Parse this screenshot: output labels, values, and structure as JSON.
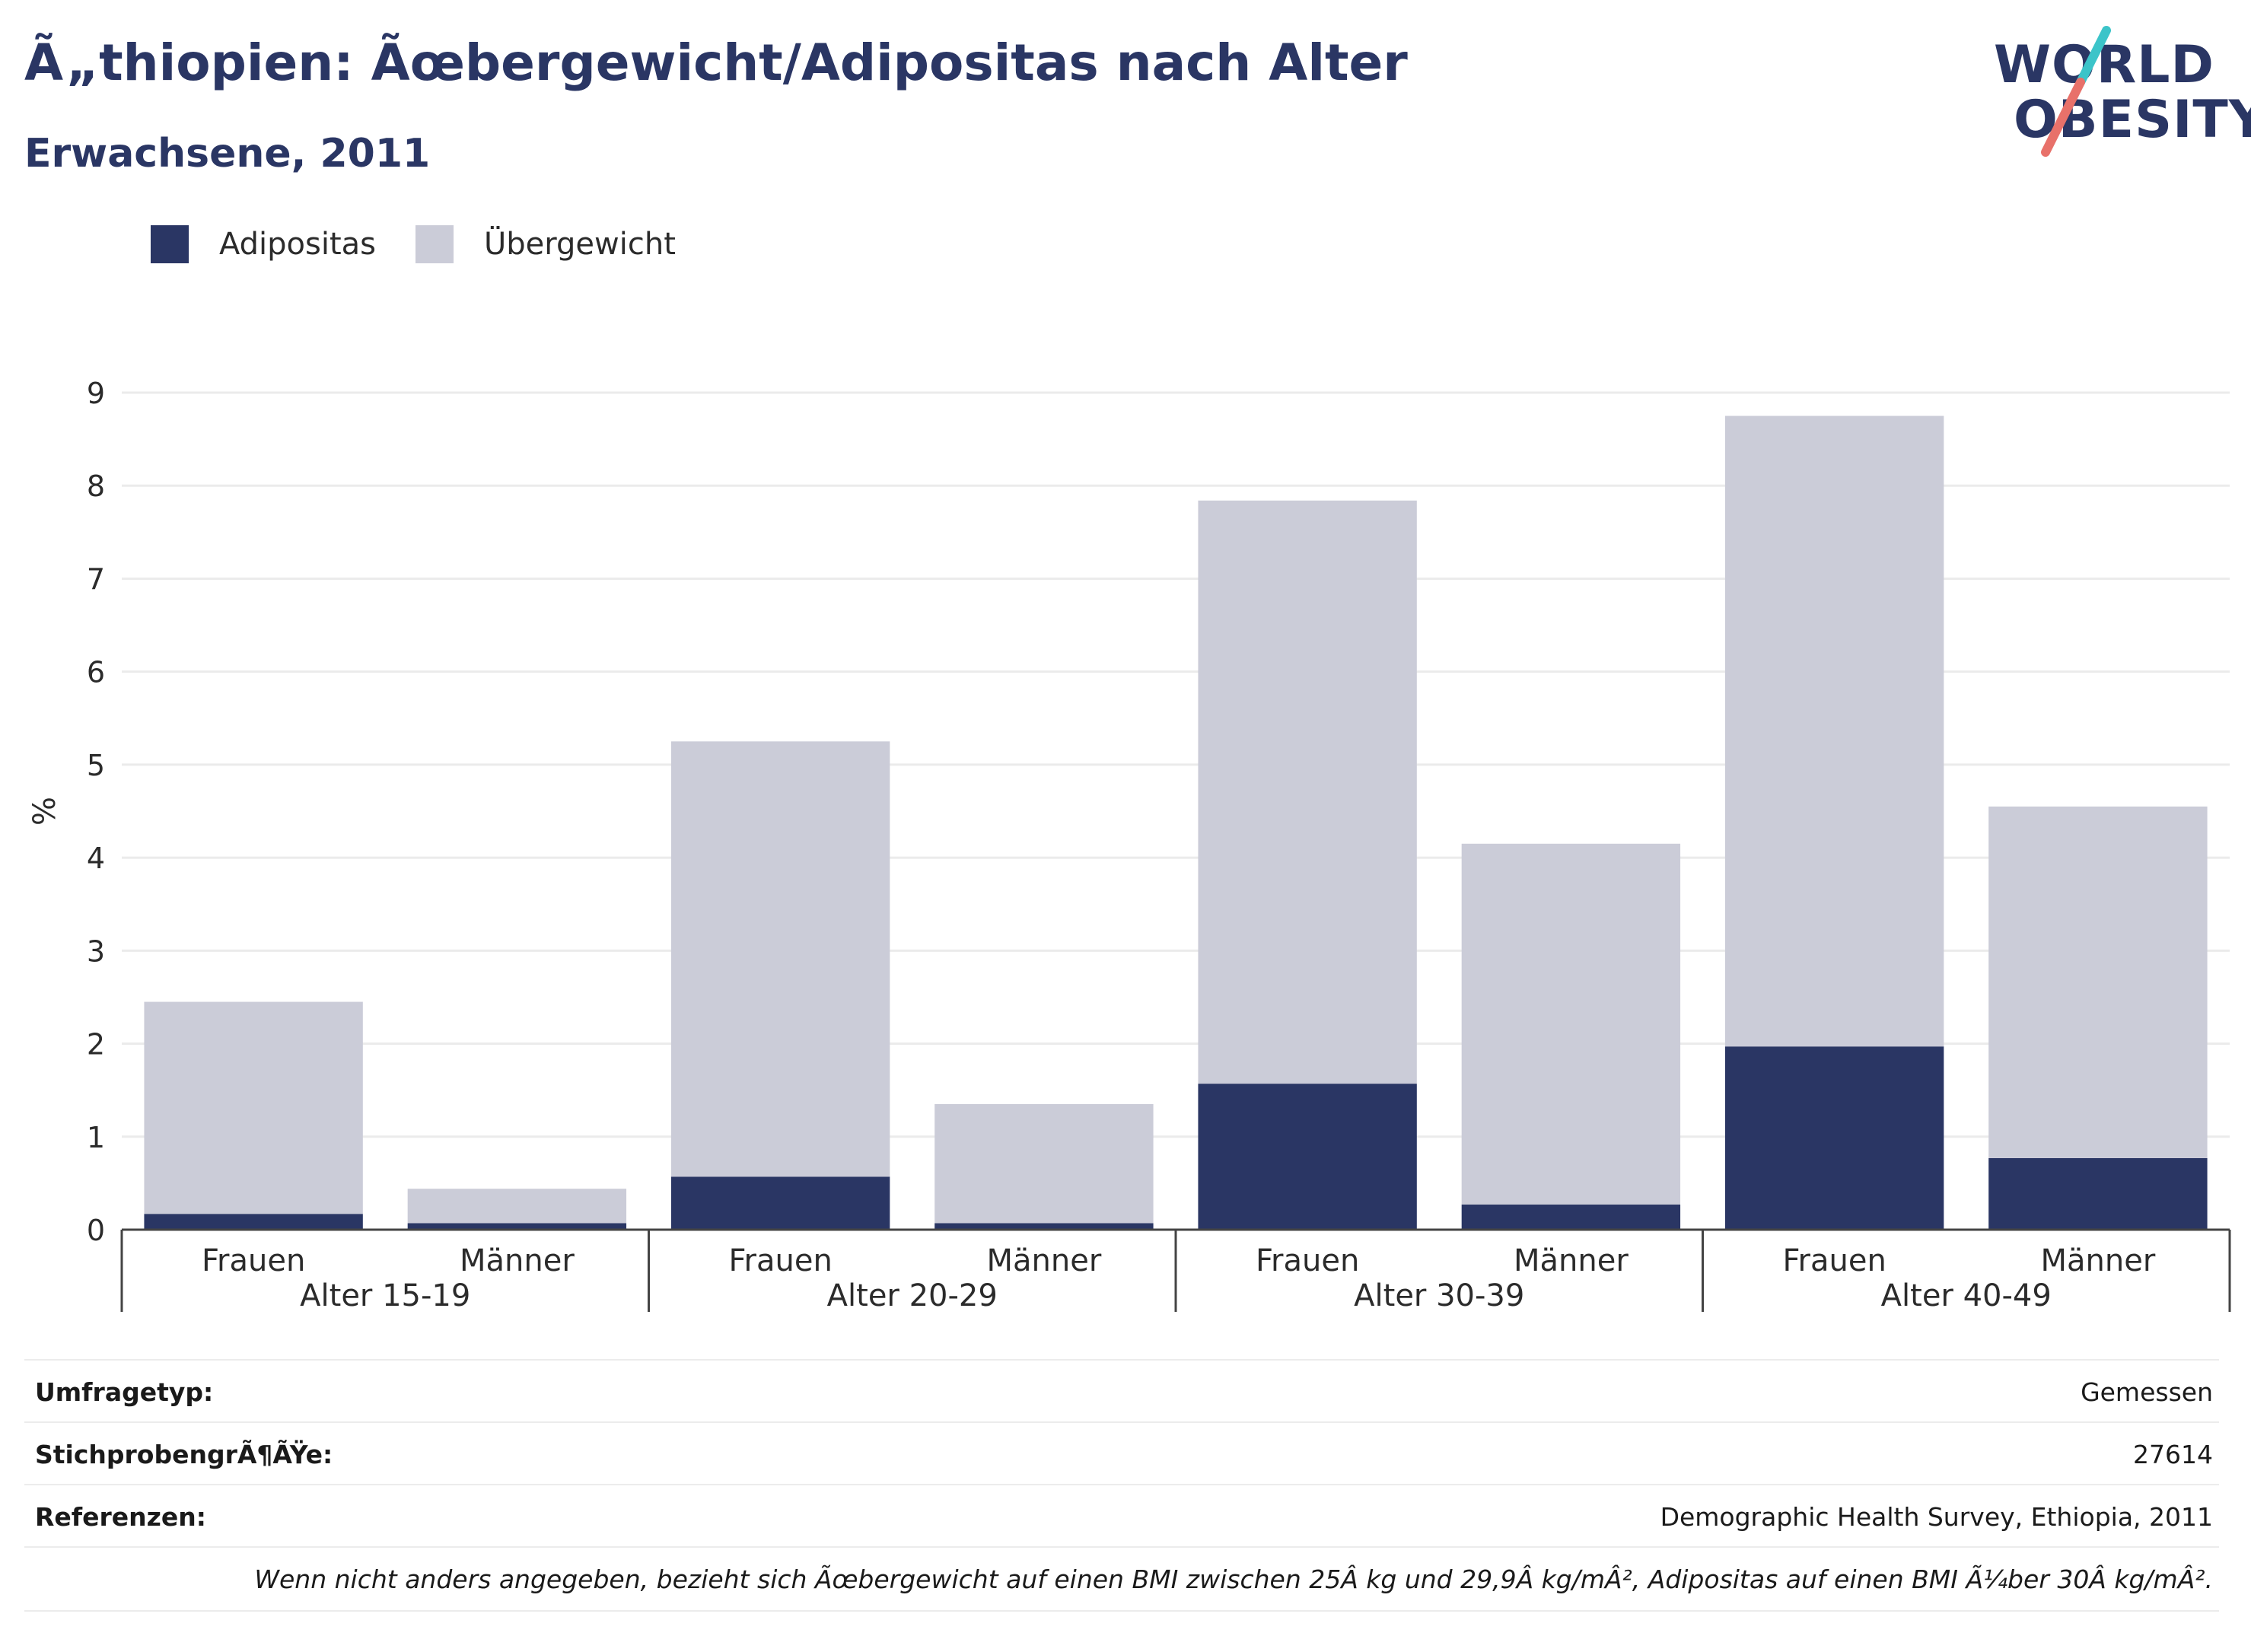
{
  "header": {
    "title": "Ã„thiopien: Ãœbergewicht/Adipositas nach Alter",
    "subtitle": "Erwachsene, 2011"
  },
  "logo": {
    "line1": "WORLD",
    "line2": "OBESITY"
  },
  "legend": {
    "items": [
      {
        "label": "Adipositas",
        "color": "#2a3664"
      },
      {
        "label": "Übergewicht",
        "color": "#cbccd8"
      }
    ]
  },
  "chart_data": {
    "type": "bar",
    "stacked": true,
    "ylabel": "%",
    "ylim": [
      0,
      9
    ],
    "yticks": [
      0,
      1,
      2,
      3,
      4,
      5,
      6,
      7,
      8,
      9
    ],
    "groups": [
      "Alter 15-19",
      "Alter 20-29",
      "Alter 30-39",
      "Alter 40-49"
    ],
    "categories": [
      "Frauen",
      "Männer",
      "Frauen",
      "Männer",
      "Frauen",
      "Männer",
      "Frauen",
      "Männer"
    ],
    "series": [
      {
        "name": "Adipositas",
        "color": "#2a3664",
        "values": [
          0.17,
          0.07,
          0.57,
          0.07,
          1.57,
          0.27,
          1.97,
          0.77
        ]
      },
      {
        "name": "Übergewicht",
        "color": "#cbccd8",
        "values": [
          2.28,
          0.37,
          4.68,
          1.28,
          6.27,
          3.88,
          6.78,
          3.78
        ]
      }
    ],
    "grid": true,
    "legend_position": "top-left"
  },
  "info": {
    "rows": [
      {
        "label": "Umfragetyp:",
        "value": "Gemessen"
      },
      {
        "label": "StichprobengrÃ¶ÃŸe:",
        "value": "27614"
      },
      {
        "label": "Referenzen:",
        "value": "Demographic Health Survey, Ethiopia, 2011"
      }
    ],
    "note": "Wenn nicht anders angegeben, bezieht sich Ãœbergewicht auf einen BMI zwischen 25Â kg und 29,9Â kg/mÂ², Adipositas auf einen BMI Ã¼ber 30Â kg/mÂ²."
  }
}
